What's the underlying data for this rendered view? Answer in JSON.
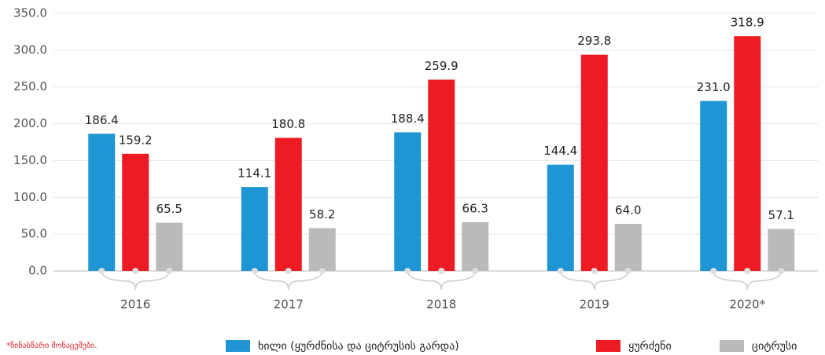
{
  "chart_data": {
    "type": "bar",
    "categories": [
      "2016",
      "2017",
      "2018",
      "2019",
      "2020*"
    ],
    "series": [
      {
        "name": "ხილი (ყურძნისა და ციტრუსის გარდა)",
        "color": "#1f95d3",
        "values": [
          186.4,
          114.1,
          188.4,
          144.4,
          231.0
        ],
        "value_labels": [
          "186.4",
          "114.1",
          "188.4",
          "144.4",
          "231.0"
        ]
      },
      {
        "name": "ყურძენი",
        "color": "#ed1c24",
        "values": [
          159.2,
          180.8,
          259.9,
          293.8,
          318.9
        ],
        "value_labels": [
          "159.2",
          "180.8",
          "259.9",
          "293.8",
          "318.9"
        ]
      },
      {
        "name": "ციტრუსი",
        "color": "#b9babc",
        "values": [
          65.5,
          58.2,
          66.3,
          64.0,
          57.1
        ],
        "value_labels": [
          "65.5",
          "58.2",
          "66.3",
          "64.0",
          "57.1"
        ]
      }
    ],
    "ylim": [
      0,
      350
    ],
    "yticks": [
      {
        "value": 0,
        "label": "0.0"
      },
      {
        "value": 50,
        "label": "50.0"
      },
      {
        "value": 100,
        "label": "100.0"
      },
      {
        "value": 150,
        "label": "150.0"
      },
      {
        "value": 200,
        "label": "200.0"
      },
      {
        "value": 250,
        "label": "250.0"
      },
      {
        "value": 300,
        "label": "300.0"
      },
      {
        "value": 350,
        "label": "350.0"
      }
    ],
    "grid": true,
    "legend": "bottom",
    "annotation": "*წინასწარი მონაცემები."
  }
}
